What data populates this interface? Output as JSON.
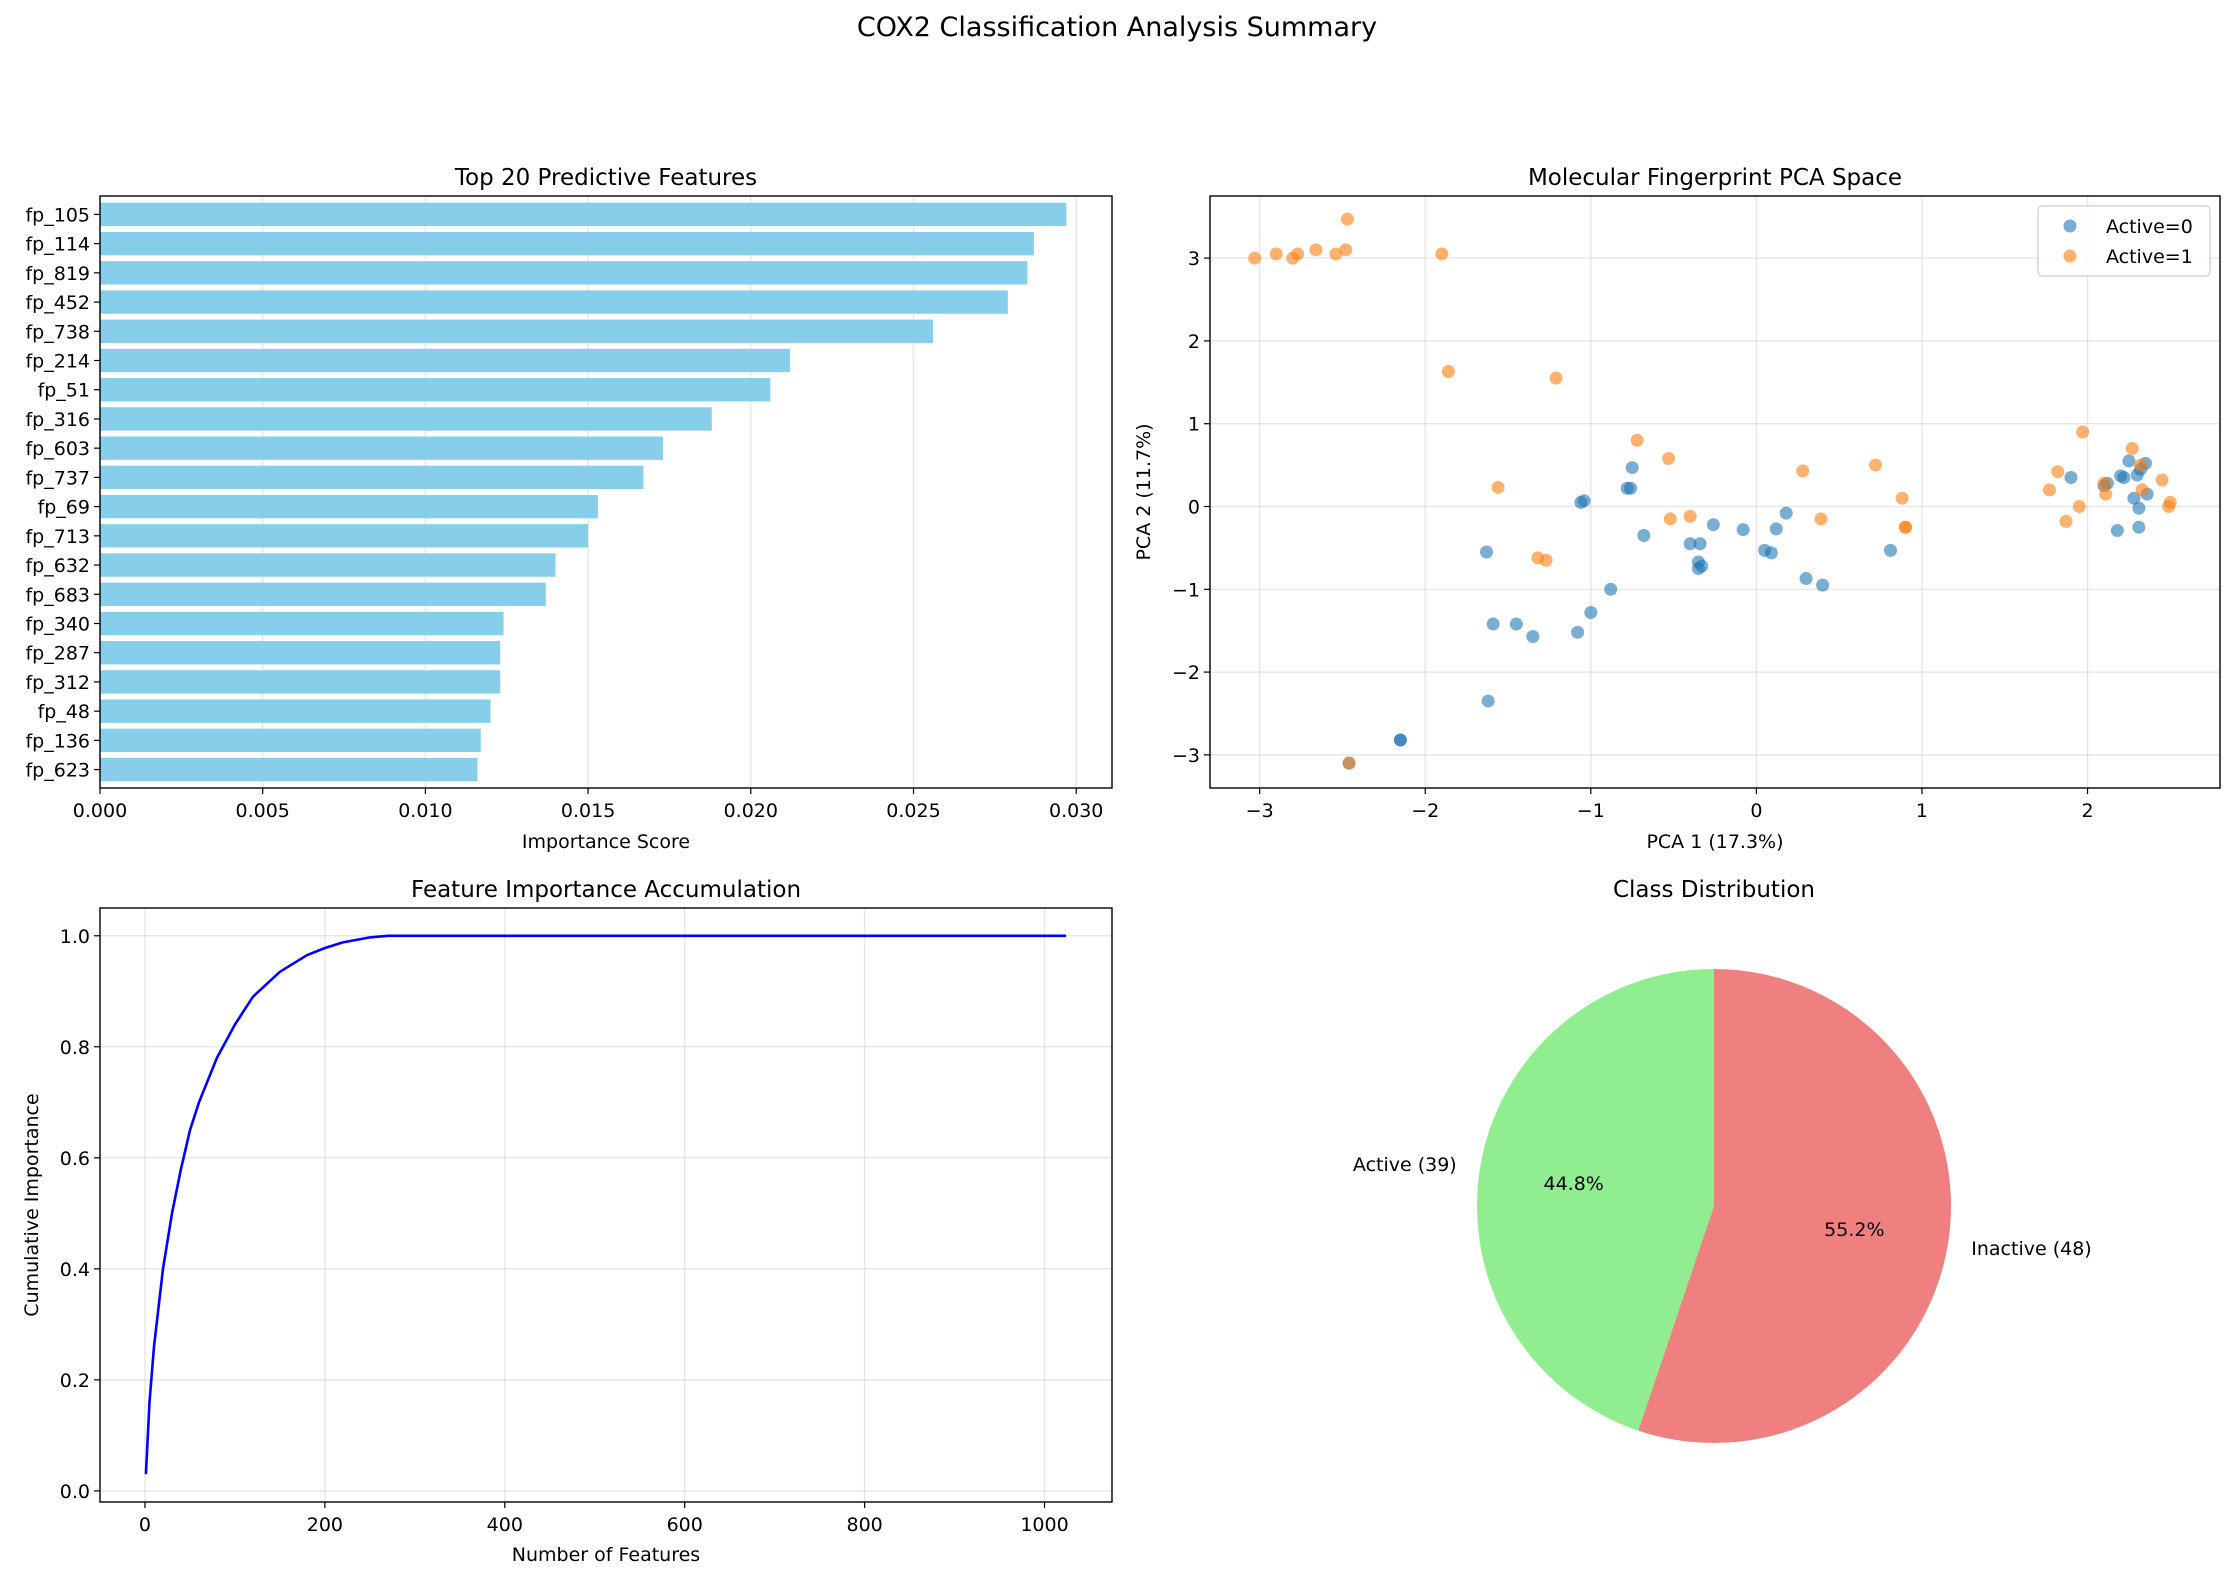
{
  "figure": {
    "suptitle": "COX2 Classification Analysis Summary"
  },
  "chart_data": [
    {
      "id": "features",
      "type": "bar",
      "orientation": "horizontal",
      "title": "Top 20 Predictive Features",
      "xlabel": "Importance Score",
      "ylabel": "",
      "xlim": [
        0,
        0.0311
      ],
      "xticks": [
        0.0,
        0.005,
        0.01,
        0.015,
        0.02,
        0.025,
        0.03
      ],
      "xtick_labels": [
        "0.000",
        "0.005",
        "0.010",
        "0.015",
        "0.020",
        "0.025",
        "0.030"
      ],
      "grid": true,
      "color": "#87ceeb",
      "categories": [
        "fp_105",
        "fp_114",
        "fp_819",
        "fp_452",
        "fp_738",
        "fp_214",
        "fp_51",
        "fp_316",
        "fp_603",
        "fp_737",
        "fp_69",
        "fp_713",
        "fp_632",
        "fp_683",
        "fp_340",
        "fp_287",
        "fp_312",
        "fp_48",
        "fp_136",
        "fp_623"
      ],
      "values": [
        0.0297,
        0.0287,
        0.0285,
        0.0279,
        0.0256,
        0.0212,
        0.0206,
        0.0188,
        0.0173,
        0.0167,
        0.0153,
        0.015,
        0.014,
        0.0137,
        0.0124,
        0.0123,
        0.0123,
        0.012,
        0.0117,
        0.0116
      ]
    },
    {
      "id": "pca",
      "type": "scatter",
      "title": "Molecular Fingerprint PCA Space",
      "xlabel": "PCA 1 (17.3%)",
      "ylabel": "PCA 2 (11.7%)",
      "xlim": [
        -3.3,
        2.8
      ],
      "ylim": [
        -3.4,
        3.75
      ],
      "xticks": [
        -3,
        -2,
        -1,
        0,
        1,
        2
      ],
      "xtick_labels": [
        "−3",
        "−2",
        "−1",
        "0",
        "1",
        "2"
      ],
      "yticks": [
        -3,
        -2,
        -1,
        0,
        1,
        2,
        3
      ],
      "ytick_labels": [
        "−3",
        "−2",
        "−1",
        "0",
        "1",
        "2",
        "3"
      ],
      "grid": true,
      "legend_position": "upper right",
      "series": [
        {
          "name": "Active=0",
          "color": "#1f77b4",
          "points": [
            [
              -1.63,
              -0.55
            ],
            [
              -1.59,
              -1.42
            ],
            [
              -1.45,
              -1.42
            ],
            [
              -1.35,
              -1.57
            ],
            [
              -1.62,
              -2.35
            ],
            [
              -2.15,
              -2.82
            ],
            [
              -2.15,
              -2.82
            ],
            [
              -2.46,
              -3.1
            ],
            [
              -1.08,
              -1.52
            ],
            [
              -1.0,
              -1.28
            ],
            [
              -0.88,
              -1.0
            ],
            [
              -1.06,
              0.05
            ],
            [
              -1.04,
              0.07
            ],
            [
              -0.78,
              0.22
            ],
            [
              -0.76,
              0.22
            ],
            [
              -0.75,
              0.47
            ],
            [
              -0.68,
              -0.35
            ],
            [
              -0.4,
              -0.45
            ],
            [
              -0.35,
              -0.67
            ],
            [
              -0.35,
              -0.75
            ],
            [
              -0.33,
              -0.72
            ],
            [
              -0.34,
              -0.45
            ],
            [
              -0.26,
              -0.22
            ],
            [
              -0.08,
              -0.28
            ],
            [
              0.05,
              -0.53
            ],
            [
              0.09,
              -0.56
            ],
            [
              0.12,
              -0.27
            ],
            [
              0.18,
              -0.08
            ],
            [
              0.3,
              -0.87
            ],
            [
              0.4,
              -0.95
            ],
            [
              0.81,
              -0.53
            ],
            [
              1.9,
              0.35
            ],
            [
              2.1,
              0.25
            ],
            [
              2.12,
              0.28
            ],
            [
              2.2,
              0.37
            ],
            [
              2.22,
              0.35
            ],
            [
              2.25,
              0.55
            ],
            [
              2.28,
              0.1
            ],
            [
              2.3,
              0.38
            ],
            [
              2.31,
              -0.02
            ],
            [
              2.32,
              0.45
            ],
            [
              2.35,
              0.52
            ],
            [
              2.36,
              0.15
            ],
            [
              2.18,
              -0.29
            ],
            [
              2.31,
              -0.25
            ]
          ]
        },
        {
          "name": "Active=1",
          "color": "#ff7f0e",
          "points": [
            [
              -3.03,
              3.0
            ],
            [
              -2.9,
              3.05
            ],
            [
              -2.8,
              3.0
            ],
            [
              -2.77,
              3.05
            ],
            [
              -2.66,
              3.1
            ],
            [
              -2.54,
              3.05
            ],
            [
              -2.48,
              3.1
            ],
            [
              -2.47,
              3.47
            ],
            [
              -1.9,
              3.05
            ],
            [
              -1.86,
              1.63
            ],
            [
              -1.21,
              1.55
            ],
            [
              -1.56,
              0.23
            ],
            [
              -0.72,
              0.8
            ],
            [
              -0.53,
              0.58
            ],
            [
              -0.52,
              -0.15
            ],
            [
              -0.4,
              -0.12
            ],
            [
              -1.32,
              -0.62
            ],
            [
              -1.27,
              -0.65
            ],
            [
              0.28,
              0.43
            ],
            [
              0.39,
              -0.15
            ],
            [
              0.72,
              0.5
            ],
            [
              0.88,
              0.1
            ],
            [
              0.9,
              -0.25
            ],
            [
              0.9,
              -0.25
            ],
            [
              1.77,
              0.2
            ],
            [
              1.82,
              0.42
            ],
            [
              1.87,
              -0.18
            ],
            [
              1.95,
              0.0
            ],
            [
              1.97,
              0.9
            ],
            [
              2.1,
              0.28
            ],
            [
              2.11,
              0.15
            ],
            [
              2.27,
              0.7
            ],
            [
              2.32,
              0.5
            ],
            [
              2.33,
              0.2
            ],
            [
              2.45,
              0.32
            ],
            [
              2.49,
              0.0
            ],
            [
              2.5,
              0.05
            ],
            [
              -2.46,
              -3.1
            ]
          ]
        }
      ]
    },
    {
      "id": "cumulative",
      "type": "line",
      "title": "Feature Importance Accumulation",
      "xlabel": "Number of Features",
      "ylabel": "Cumulative Importance",
      "xlim": [
        -50,
        1075
      ],
      "ylim": [
        -0.02,
        1.05
      ],
      "xticks": [
        0,
        200,
        400,
        600,
        800,
        1000
      ],
      "xtick_labels": [
        "0",
        "200",
        "400",
        "600",
        "800",
        "1000"
      ],
      "yticks": [
        0.0,
        0.2,
        0.4,
        0.6,
        0.8,
        1.0
      ],
      "ytick_labels": [
        "0.0",
        "0.2",
        "0.4",
        "0.6",
        "0.8",
        "1.0"
      ],
      "grid": true,
      "color": "#0000ff",
      "x": [
        1,
        5,
        10,
        20,
        30,
        40,
        50,
        60,
        80,
        100,
        120,
        150,
        180,
        200,
        220,
        250,
        270,
        300,
        400,
        500,
        600,
        700,
        800,
        900,
        1024
      ],
      "y": [
        0.03,
        0.16,
        0.26,
        0.4,
        0.5,
        0.58,
        0.65,
        0.7,
        0.78,
        0.84,
        0.89,
        0.935,
        0.965,
        0.978,
        0.988,
        0.997,
        1.0,
        1.0,
        1.0,
        1.0,
        1.0,
        1.0,
        1.0,
        1.0,
        1.0
      ]
    },
    {
      "id": "classes",
      "type": "pie",
      "title": "Class Distribution",
      "startangle": 90,
      "slices": [
        {
          "label": "Active (39)",
          "value": 39,
          "pct_label": "44.8%",
          "color": "#90ee90"
        },
        {
          "label": "Inactive (48)",
          "value": 48,
          "pct_label": "55.2%",
          "color": "#f08080"
        }
      ]
    }
  ]
}
